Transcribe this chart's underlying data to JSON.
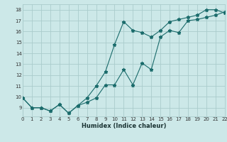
{
  "xlabel": "Humidex (Indice chaleur)",
  "bg_color": "#cce8e8",
  "grid_color": "#aacccc",
  "line_color": "#1a6b6b",
  "line1_x": [
    0,
    1,
    2,
    3,
    4,
    5,
    6,
    7,
    8,
    9,
    10,
    11,
    12,
    13,
    14,
    15,
    16,
    17,
    18,
    19,
    20,
    21,
    22
  ],
  "line1_y": [
    9.9,
    9.0,
    9.0,
    8.7,
    9.3,
    8.5,
    9.2,
    9.5,
    9.9,
    11.1,
    11.1,
    12.5,
    11.1,
    13.1,
    12.5,
    15.5,
    16.1,
    15.9,
    17.0,
    17.1,
    17.3,
    17.5,
    17.8
  ],
  "line2_x": [
    0,
    1,
    2,
    3,
    4,
    5,
    6,
    7,
    8,
    9,
    10,
    11,
    12,
    13,
    14,
    15,
    16,
    17,
    18,
    19,
    20,
    21,
    22
  ],
  "line2_y": [
    9.9,
    9.0,
    9.0,
    8.7,
    9.3,
    8.5,
    9.2,
    9.9,
    11.0,
    12.3,
    14.8,
    16.9,
    16.1,
    15.9,
    15.5,
    16.1,
    16.9,
    17.1,
    17.3,
    17.5,
    18.0,
    18.0,
    17.7
  ],
  "xlim": [
    0,
    22
  ],
  "ylim": [
    8.2,
    18.5
  ],
  "yticks": [
    9,
    10,
    11,
    12,
    13,
    14,
    15,
    16,
    17,
    18
  ],
  "xticks": [
    0,
    1,
    2,
    3,
    4,
    5,
    6,
    7,
    8,
    9,
    10,
    11,
    12,
    13,
    14,
    15,
    16,
    17,
    18,
    19,
    20,
    21,
    22
  ],
  "xlabel_fontsize": 6,
  "tick_fontsize": 5
}
